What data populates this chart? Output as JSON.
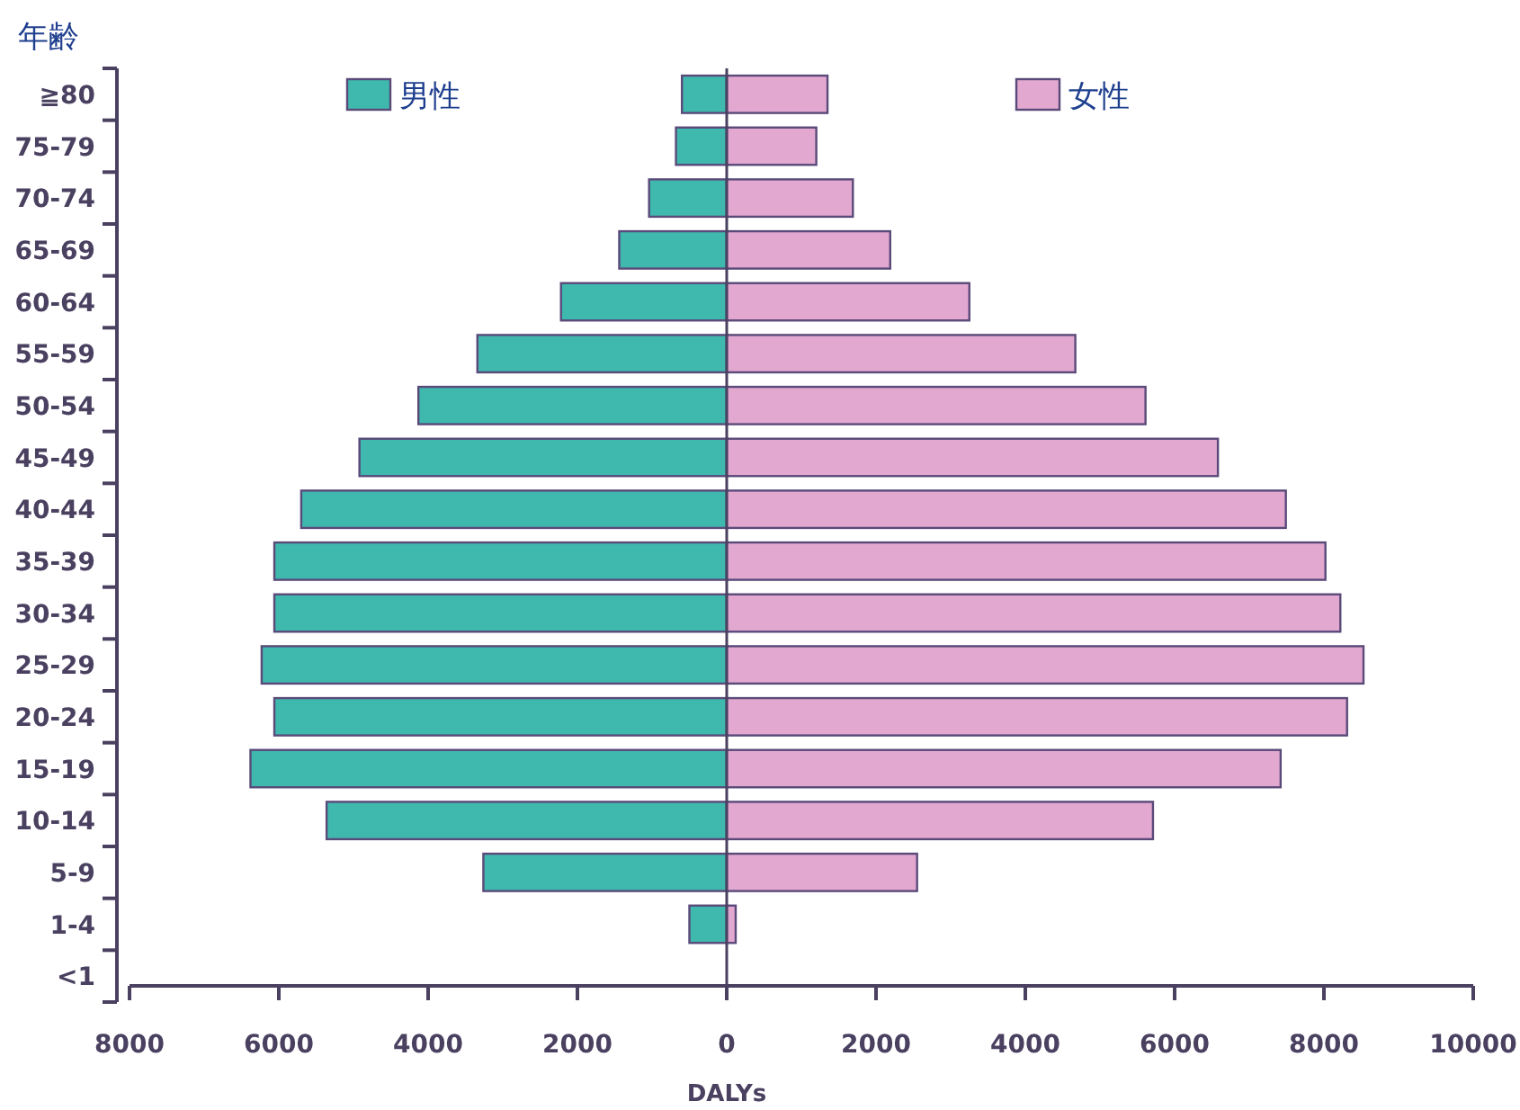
{
  "chart_data": {
    "type": "bar",
    "orientation": "horizontal",
    "stacked": true,
    "ylabel": "年齢",
    "xlabel": "DALYs",
    "categories": [
      "≧80",
      "75-79",
      "70-74",
      "65-69",
      "60-64",
      "55-59",
      "50-54",
      "45-49",
      "40-44",
      "35-39",
      "30-34",
      "25-29",
      "20-24",
      "15-19",
      "10-14",
      "5-9",
      "1-4",
      "<1"
    ],
    "series": [
      {
        "name": "男性",
        "color": "#3fb8ad",
        "values": [
          -600,
          -680,
          -1040,
          -1440,
          -2220,
          -3340,
          -4130,
          -4920,
          -5700,
          -6060,
          -6060,
          -6230,
          -6060,
          -6380,
          -5360,
          -3260,
          -500,
          0
        ]
      },
      {
        "name": "女性",
        "color": "#e2a8cf",
        "values": [
          1350,
          1200,
          1690,
          2190,
          3250,
          4670,
          5610,
          6580,
          7490,
          8020,
          8220,
          8530,
          8310,
          7420,
          5710,
          2550,
          120,
          0
        ]
      }
    ],
    "xlim": [
      -8000,
      10000
    ],
    "xticks": [
      {
        "value": -8000,
        "label": "8000"
      },
      {
        "value": -6000,
        "label": "6000"
      },
      {
        "value": -4000,
        "label": "4000"
      },
      {
        "value": -2000,
        "label": "2000"
      },
      0,
      2000,
      4000,
      6000,
      8000,
      10000
    ],
    "ref_lines": [
      {
        "axis": "x",
        "value": 0
      }
    ],
    "legend": "top"
  }
}
